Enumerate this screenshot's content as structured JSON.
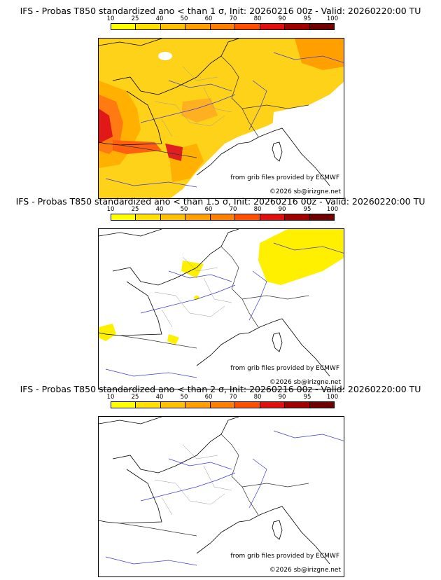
{
  "colorbar": {
    "ticks": [
      "10",
      "25",
      "40",
      "50",
      "60",
      "70",
      "80",
      "90",
      "95",
      "100"
    ],
    "colors": [
      "#ffff00",
      "#ffe000",
      "#ffc000",
      "#ffa000",
      "#ff8000",
      "#ff5000",
      "#e01010",
      "#a00000",
      "#700000"
    ]
  },
  "panels": [
    {
      "title": "IFS - Probas T850  standardized ano < than 1 σ, Init: 20260216 00z - Valid: 20260220:00 TU",
      "credit_source": "from grib files provided by ECMWF",
      "credit_copy": "©2026 sb@irizgne.net"
    },
    {
      "title": "IFS - Probas T850  standardized ano < than 1.5 σ, Init: 20260216 00z - Valid: 20260220:00 TU",
      "credit_source": "from grib files provided by ECMWF",
      "credit_copy": "©2026 sb@irizgne.net"
    },
    {
      "title": "IFS - Probas T850  standardized ano < than 2 σ, Init: 20260216 00z - Valid: 20260220:00 TU",
      "credit_source": "from grib files provided by ECMWF",
      "credit_copy": "©2026 sb@irizgne.net"
    }
  ]
}
